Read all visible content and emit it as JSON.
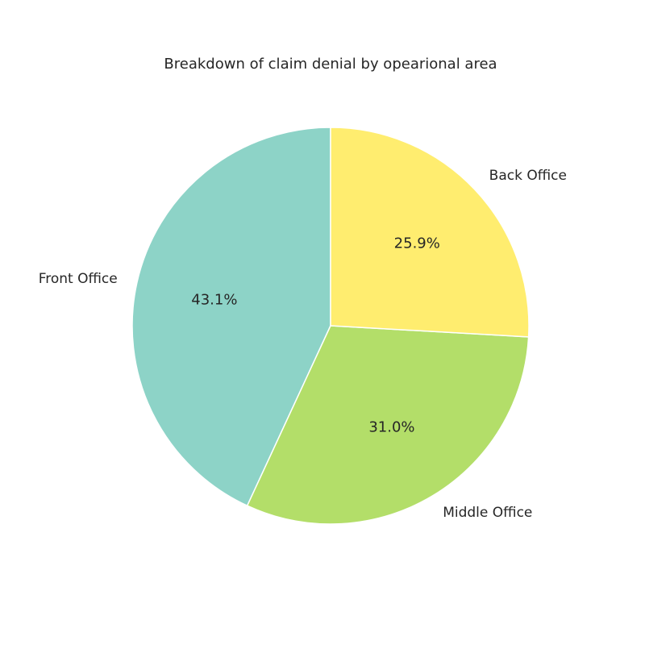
{
  "chart_data": {
    "type": "pie",
    "title": "Breakdown of claim denial by opearional area",
    "slices": [
      {
        "label": "Front Office",
        "value": 43.1,
        "pct_label": "43.1%",
        "color": "#8dd3c7"
      },
      {
        "label": "Middle Office",
        "value": 31.0,
        "pct_label": "31.0%",
        "color": "#b3de69"
      },
      {
        "label": "Back Office",
        "value": 25.9,
        "pct_label": "25.9%",
        "color": "#ffed6f"
      }
    ],
    "start_angle_deg": 90,
    "direction": "counterclockwise",
    "edge_color": "#ffffff"
  }
}
